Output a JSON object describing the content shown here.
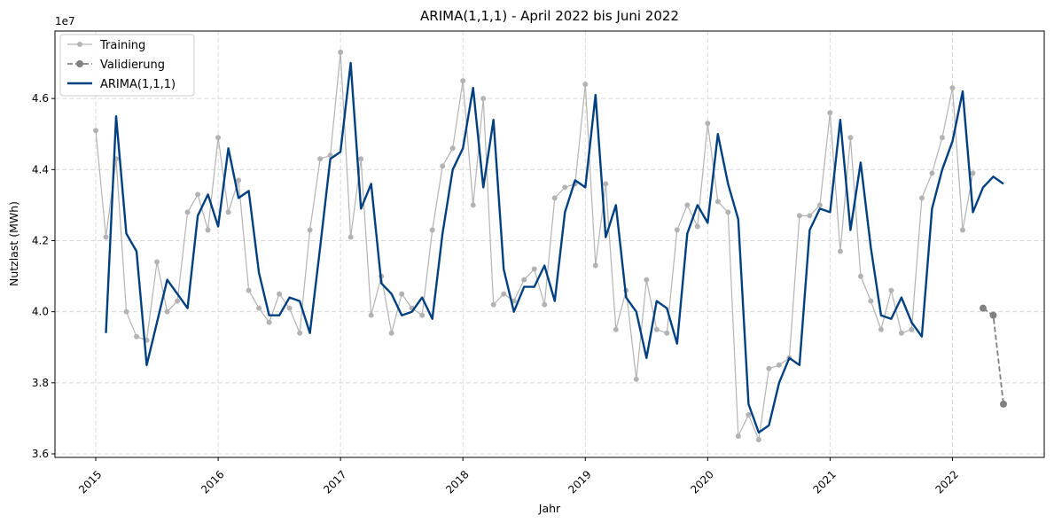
{
  "chart_data": {
    "type": "line",
    "title": "ARIMA(1,1,1) - April 2022 bis Juni 2022",
    "xlabel": "Jahr",
    "ylabel": "Nutzlast (MWh)",
    "y_offset_label": "1e7",
    "x_tick_labels": [
      "2015",
      "2016",
      "2017",
      "2018",
      "2019",
      "2020",
      "2021",
      "2022"
    ],
    "y_tick_labels": [
      "3.6",
      "3.8",
      "4.0",
      "4.2",
      "4.4",
      "4.6"
    ],
    "y_ticks": [
      3.6,
      3.8,
      4.0,
      4.2,
      4.4,
      4.6
    ],
    "ylim": [
      3.59,
      4.79
    ],
    "xlim": [
      "2014-09",
      "2022-10"
    ],
    "grid": true,
    "legend_position": "top-left",
    "series": [
      {
        "name": "Training",
        "color": "#b3b3b3",
        "style": "solid-markers",
        "x": [
          "2015-01",
          "2015-02",
          "2015-03",
          "2015-04",
          "2015-05",
          "2015-06",
          "2015-07",
          "2015-08",
          "2015-09",
          "2015-10",
          "2015-11",
          "2015-12",
          "2016-01",
          "2016-02",
          "2016-03",
          "2016-04",
          "2016-05",
          "2016-06",
          "2016-07",
          "2016-08",
          "2016-09",
          "2016-10",
          "2016-11",
          "2016-12",
          "2017-01",
          "2017-02",
          "2017-03",
          "2017-04",
          "2017-05",
          "2017-06",
          "2017-07",
          "2017-08",
          "2017-09",
          "2017-10",
          "2017-11",
          "2017-12",
          "2018-01",
          "2018-02",
          "2018-03",
          "2018-04",
          "2018-05",
          "2018-06",
          "2018-07",
          "2018-08",
          "2018-09",
          "2018-10",
          "2018-11",
          "2018-12",
          "2019-01",
          "2019-02",
          "2019-03",
          "2019-04",
          "2019-05",
          "2019-06",
          "2019-07",
          "2019-08",
          "2019-09",
          "2019-10",
          "2019-11",
          "2019-12",
          "2020-01",
          "2020-02",
          "2020-03",
          "2020-04",
          "2020-05",
          "2020-06",
          "2020-07",
          "2020-08",
          "2020-09",
          "2020-10",
          "2020-11",
          "2020-12",
          "2021-01",
          "2021-02",
          "2021-03",
          "2021-04",
          "2021-05",
          "2021-06",
          "2021-07",
          "2021-08",
          "2021-09",
          "2021-10",
          "2021-11",
          "2021-12",
          "2022-01",
          "2022-02",
          "2022-03"
        ],
        "values": [
          4.51,
          4.21,
          4.43,
          4.0,
          3.93,
          3.92,
          4.14,
          4.0,
          4.03,
          4.28,
          4.33,
          4.23,
          4.49,
          4.28,
          4.37,
          4.06,
          4.01,
          3.97,
          4.05,
          4.01,
          3.94,
          4.23,
          4.43,
          4.44,
          4.73,
          4.21,
          4.43,
          3.99,
          4.1,
          3.94,
          4.05,
          4.01,
          3.99,
          4.23,
          4.41,
          4.46,
          4.65,
          4.3,
          4.6,
          4.02,
          4.05,
          4.03,
          4.09,
          4.12,
          4.02,
          4.32,
          4.35,
          4.36,
          4.64,
          4.13,
          4.36,
          3.95,
          4.06,
          3.81,
          4.09,
          3.95,
          3.94,
          4.23,
          4.3,
          4.24,
          4.53,
          4.31,
          4.28,
          3.65,
          3.71,
          3.64,
          3.84,
          3.85,
          3.87,
          4.27,
          4.27,
          4.3,
          4.56,
          4.17,
          4.49,
          4.1,
          4.03,
          3.95,
          4.06,
          3.94,
          3.95,
          4.32,
          4.39,
          4.49,
          4.63,
          4.23,
          4.39
        ]
      },
      {
        "name": "Validierung",
        "color": "#808080",
        "style": "dashed-markers",
        "x": [
          "2022-04",
          "2022-05",
          "2022-06"
        ],
        "values": [
          4.01,
          3.99,
          3.74
        ]
      },
      {
        "name": "ARIMA(1,1,1)",
        "color": "#004080",
        "style": "solid",
        "x": [
          "2015-02",
          "2015-03",
          "2015-04",
          "2015-05",
          "2015-06",
          "2015-07",
          "2015-08",
          "2015-09",
          "2015-10",
          "2015-11",
          "2015-12",
          "2016-01",
          "2016-02",
          "2016-03",
          "2016-04",
          "2016-05",
          "2016-06",
          "2016-07",
          "2016-08",
          "2016-09",
          "2016-10",
          "2016-11",
          "2016-12",
          "2017-01",
          "2017-02",
          "2017-03",
          "2017-04",
          "2017-05",
          "2017-06",
          "2017-07",
          "2017-08",
          "2017-09",
          "2017-10",
          "2017-11",
          "2017-12",
          "2018-01",
          "2018-02",
          "2018-03",
          "2018-04",
          "2018-05",
          "2018-06",
          "2018-07",
          "2018-08",
          "2018-09",
          "2018-10",
          "2018-11",
          "2018-12",
          "2019-01",
          "2019-02",
          "2019-03",
          "2019-04",
          "2019-05",
          "2019-06",
          "2019-07",
          "2019-08",
          "2019-09",
          "2019-10",
          "2019-11",
          "2019-12",
          "2020-01",
          "2020-02",
          "2020-03",
          "2020-04",
          "2020-05",
          "2020-06",
          "2020-07",
          "2020-08",
          "2020-09",
          "2020-10",
          "2020-11",
          "2020-12",
          "2021-01",
          "2021-02",
          "2021-03",
          "2021-04",
          "2021-05",
          "2021-06",
          "2021-07",
          "2021-08",
          "2021-09",
          "2021-10",
          "2021-11",
          "2021-12",
          "2022-01",
          "2022-02",
          "2022-03",
          "2022-04",
          "2022-05",
          "2022-06"
        ],
        "values": [
          3.94,
          4.55,
          4.22,
          4.17,
          3.85,
          3.97,
          4.09,
          4.05,
          4.01,
          4.27,
          4.33,
          4.24,
          4.46,
          4.32,
          4.34,
          4.11,
          3.99,
          3.99,
          4.04,
          4.03,
          3.94,
          4.18,
          4.43,
          4.45,
          4.7,
          4.29,
          4.36,
          4.08,
          4.05,
          3.99,
          4.0,
          4.04,
          3.98,
          4.22,
          4.4,
          4.46,
          4.63,
          4.35,
          4.54,
          4.12,
          4.0,
          4.07,
          4.07,
          4.13,
          4.03,
          4.28,
          4.37,
          4.35,
          4.61,
          4.21,
          4.3,
          4.04,
          4.0,
          3.87,
          4.03,
          4.01,
          3.91,
          4.22,
          4.3,
          4.25,
          4.5,
          4.36,
          4.26,
          3.74,
          3.66,
          3.68,
          3.8,
          3.87,
          3.85,
          4.23,
          4.29,
          4.28,
          4.54,
          4.23,
          4.42,
          4.18,
          3.99,
          3.98,
          4.04,
          3.97,
          3.93,
          4.29,
          4.4,
          4.48,
          4.62,
          4.28,
          4.35,
          4.38,
          4.36
        ]
      }
    ]
  }
}
